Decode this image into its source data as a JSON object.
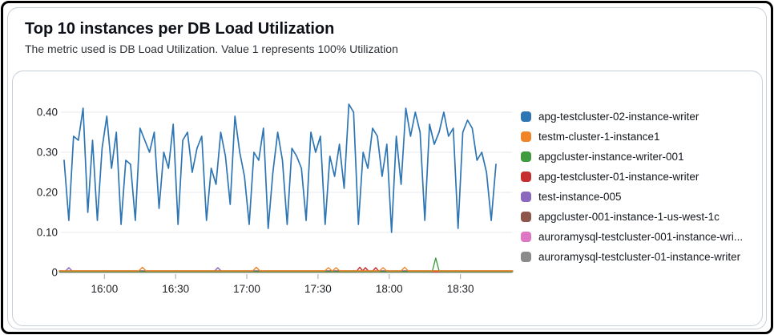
{
  "page": {
    "title": "Top 10 instances per DB Load Utilization",
    "subtitle": "The metric used is DB Load Utilization. Value 1 represents 100% Utilization"
  },
  "chart_data": {
    "type": "line",
    "title": "Top 10 instances per DB Load Utilization",
    "xlabel": "",
    "ylabel": "",
    "grid": "horizontal",
    "legend_position": "right",
    "x_axis": {
      "unit": "time",
      "start_label": "15:43",
      "end_label": "18:46",
      "total_minutes": 183,
      "tick_minutes": [
        17,
        47,
        77,
        107,
        137,
        167
      ],
      "tick_labels": [
        "16:00",
        "16:30",
        "17:00",
        "17:30",
        "18:00",
        "18:30"
      ]
    },
    "y_axis": {
      "min": 0,
      "max": 0.44,
      "ticks": [
        0,
        0.1,
        0.2,
        0.3,
        0.4
      ],
      "tick_labels": [
        "0",
        "0.10",
        "0.20",
        "0.30",
        "0.40"
      ]
    },
    "series": [
      {
        "name": "apg-testcluster-02-instance-writer",
        "color": "#2e75b3",
        "start_min": 0,
        "step_min": 2,
        "values": [
          0.28,
          0.13,
          0.34,
          0.33,
          0.41,
          0.15,
          0.33,
          0.13,
          0.31,
          0.39,
          0.26,
          0.35,
          0.12,
          0.28,
          0.27,
          0.13,
          0.36,
          0.33,
          0.3,
          0.35,
          0.16,
          0.3,
          0.26,
          0.37,
          0.12,
          0.33,
          0.35,
          0.25,
          0.31,
          0.34,
          0.13,
          0.26,
          0.22,
          0.35,
          0.29,
          0.17,
          0.39,
          0.3,
          0.24,
          0.12,
          0.3,
          0.28,
          0.36,
          0.11,
          0.25,
          0.35,
          0.28,
          0.12,
          0.31,
          0.29,
          0.26,
          0.13,
          0.35,
          0.3,
          0.34,
          0.12,
          0.29,
          0.24,
          0.32,
          0.21,
          0.42,
          0.4,
          0.12,
          0.3,
          0.26,
          0.36,
          0.34,
          0.24,
          0.32,
          0.1,
          0.34,
          0.22,
          0.41,
          0.34,
          0.4,
          0.35,
          0.13,
          0.37,
          0.32,
          0.35,
          0.4,
          0.34,
          0.36,
          0.11,
          0.35,
          0.38,
          0.36,
          0.28,
          0.3,
          0.25,
          0.13,
          0.27
        ]
      },
      {
        "name": "testm-cluster-1-instance1",
        "color": "#f08528",
        "baseline": 0.004,
        "spikes": [
          [
            33,
            0.013
          ],
          [
            81,
            0.013
          ],
          [
            111.4,
            0.012
          ],
          [
            114.6,
            0.012
          ],
          [
            134.4,
            0.012
          ],
          [
            143.5,
            0.013
          ]
        ]
      },
      {
        "name": "apgcluster-instance-writer-001",
        "color": "#3f9b3d",
        "baseline": 0.002,
        "spikes": [
          [
            156.6,
            0.036
          ]
        ]
      },
      {
        "name": "apg-testcluster-01-instance-writer",
        "color": "#c62f2f",
        "baseline": 0.002,
        "spikes": [
          [
            124.6,
            0.013
          ],
          [
            127.0,
            0.012
          ],
          [
            131.3,
            0.012
          ]
        ]
      },
      {
        "name": "test-instance-005",
        "color": "#8b68bd",
        "baseline": 0.003,
        "spikes": [
          [
            2,
            0.012
          ],
          [
            64.8,
            0.012
          ]
        ]
      },
      {
        "name": "apgcluster-001-instance-1-us-west-1c",
        "color": "#8c564b",
        "baseline": 0.004,
        "spikes": []
      },
      {
        "name": "auroramysql-testcluster-001-instance-wri...",
        "color": "#dd77c4",
        "baseline": 0.002,
        "spikes": []
      },
      {
        "name": "auroramysql-testcluster-01-instance-writer",
        "color": "#8a8a8a",
        "baseline": 0.003,
        "spikes": []
      }
    ]
  }
}
